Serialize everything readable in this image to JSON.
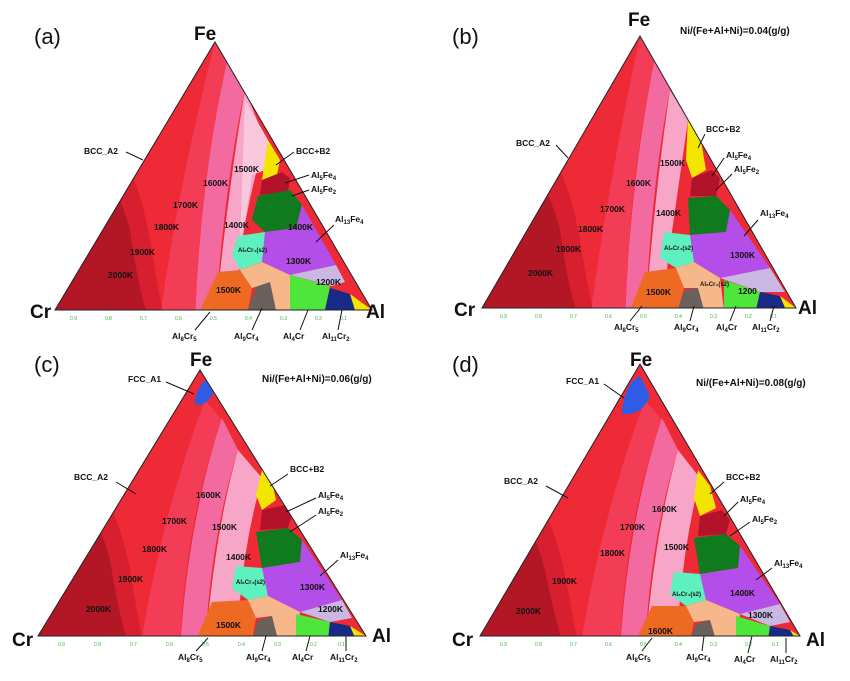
{
  "vertices": {
    "top": "Fe",
    "left": "Cr",
    "right": "Al"
  },
  "tick_labels": [
    "0.9",
    "0.8",
    "0.7",
    "0.6",
    "0.5",
    "0.4",
    "0.3",
    "0.2",
    "0.1"
  ],
  "panels": [
    {
      "letter": "(a)",
      "condition": "",
      "labels": {
        "bcc": "BCC_A2",
        "bccb2": "BCC+B2",
        "al5fe4": {
          "base": "Al",
          "sub1": "5",
          "mid": "Fe",
          "sub2": "4"
        },
        "al5fe2": {
          "base": "Al",
          "sub1": "5",
          "mid": "Fe",
          "sub2": "2"
        },
        "al13fe4": {
          "base": "Al",
          "sub1": "13",
          "mid": "Fe",
          "sub2": "4"
        },
        "al8cr5": {
          "base": "Al",
          "sub1": "8",
          "mid": "Cr",
          "sub2": "5"
        },
        "al9cr4": {
          "base": "Al",
          "sub1": "9",
          "mid": "Cr",
          "sub2": "4"
        },
        "al4cr": {
          "base": "Al",
          "sub1": "4",
          "mid": "Cr",
          "sub2": ""
        },
        "al11cr2": {
          "base": "Al",
          "sub1": "11",
          "mid": "Cr",
          "sub2": "2"
        },
        "al8cr4s2": "Al₈Cr₄(s2)"
      },
      "temps": [
        "2000K",
        "1900K",
        "1800K",
        "1700K",
        "1600K",
        "1500K",
        "1400K",
        "1400K",
        "1300K",
        "1200K",
        "1500K"
      ]
    },
    {
      "letter": "(b)",
      "condition": "Ni/(Fe+Al+Ni)=0.04(g/g)",
      "labels": {
        "bcc": "BCC_A2",
        "bccb2": "BCC+B2",
        "al5fe4": {
          "base": "Al",
          "sub1": "5",
          "mid": "Fe",
          "sub2": "4"
        },
        "al5fe2": {
          "base": "Al",
          "sub1": "5",
          "mid": "Fe",
          "sub2": "2"
        },
        "al13fe4": {
          "base": "Al",
          "sub1": "13",
          "mid": "Fe",
          "sub2": "4"
        },
        "al8cr5": {
          "base": "Al",
          "sub1": "8",
          "mid": "Cr",
          "sub2": "5"
        },
        "al9cr4": {
          "base": "Al",
          "sub1": "9",
          "mid": "Cr",
          "sub2": "4"
        },
        "al4cr": {
          "base": "Al",
          "sub1": "4",
          "mid": "Cr",
          "sub2": ""
        },
        "al11cr2": {
          "base": "Al",
          "sub1": "11",
          "mid": "Cr",
          "sub2": "2"
        },
        "al8cr4s2": "Al₈Cr₄(s2)"
      },
      "temps": [
        "2000K",
        "1900K",
        "1800K",
        "1700K",
        "1600K",
        "1500K",
        "1400K",
        "1500K",
        "1300K",
        "1200"
      ]
    },
    {
      "letter": "(c)",
      "condition": "Ni/(Fe+Al+Ni)=0.06(g/g)",
      "labels": {
        "fcc": "FCC_A1",
        "bcc": "BCC_A2",
        "bccb2": "BCC+B2",
        "al5fe4": {
          "base": "Al",
          "sub1": "5",
          "mid": "Fe",
          "sub2": "4"
        },
        "al5fe2": {
          "base": "Al",
          "sub1": "5",
          "mid": "Fe",
          "sub2": "2"
        },
        "al13fe4": {
          "base": "Al",
          "sub1": "13",
          "mid": "Fe",
          "sub2": "4"
        },
        "al8cr5": {
          "base": "Al",
          "sub1": "8",
          "mid": "Cr",
          "sub2": "5"
        },
        "al9cr4": {
          "base": "Al",
          "sub1": "9",
          "mid": "Cr",
          "sub2": "4"
        },
        "al4cr": {
          "base": "Al",
          "sub1": "4",
          "mid": "Cr",
          "sub2": ""
        },
        "al11cr2": {
          "base": "Al",
          "sub1": "11",
          "mid": "Cr",
          "sub2": "2"
        },
        "al8cr4s2": "Al₈Cr₄(s2)"
      },
      "temps": [
        "2000K",
        "1900K",
        "1800K",
        "1700K",
        "1600K",
        "1500K",
        "1400K",
        "1300K",
        "1200K",
        "1500K"
      ]
    },
    {
      "letter": "(d)",
      "condition": "Ni/(Fe+Al+Ni)=0.08(g/g)",
      "labels": {
        "fcc": "FCC_A1",
        "bcc": "BCC_A2",
        "bccb2": "BCC+B2",
        "al5fe4": {
          "base": "Al",
          "sub1": "5",
          "mid": "Fe",
          "sub2": "4"
        },
        "al5fe2": {
          "base": "Al",
          "sub1": "5",
          "mid": "Fe",
          "sub2": "2"
        },
        "al13fe4": {
          "base": "Al",
          "sub1": "13",
          "mid": "Fe",
          "sub2": "4"
        },
        "al8cr5": {
          "base": "Al",
          "sub1": "8",
          "mid": "Cr",
          "sub2": "5"
        },
        "al9cr4": {
          "base": "Al",
          "sub1": "9",
          "mid": "Cr",
          "sub2": "4"
        },
        "al4cr": {
          "base": "Al",
          "sub1": "4",
          "mid": "Cr",
          "sub2": ""
        },
        "al11cr2": {
          "base": "Al",
          "sub1": "11",
          "mid": "Cr",
          "sub2": "2"
        },
        "al8cr4s2": "Al₈Cr₄(s2)"
      },
      "temps": [
        "2000K",
        "1900K",
        "1800K",
        "1700K",
        "1600K",
        "1500K",
        "1400K",
        "1300K",
        "1600K"
      ]
    }
  ],
  "colors": {
    "hottest": "#9e1a22",
    "hot": "#d4142c",
    "red": "#ef2a37",
    "pinkred": "#f4405e",
    "pink": "#f36aa0",
    "lightpink": "#f7a6c8",
    "palepink": "#f9c8dc",
    "yellow": "#f2e600",
    "darkred": "#b3122b",
    "darkgreen": "#0f7a1e",
    "violet": "#b44ee8",
    "lilac": "#c9b7e4",
    "aqua": "#5ff0c0",
    "orange": "#ee6a22",
    "peach": "#f6b88a",
    "darkgray": "#6a615d",
    "lime": "#4fe63c",
    "navy": "#172a86",
    "blue": "#2e5ce6"
  }
}
